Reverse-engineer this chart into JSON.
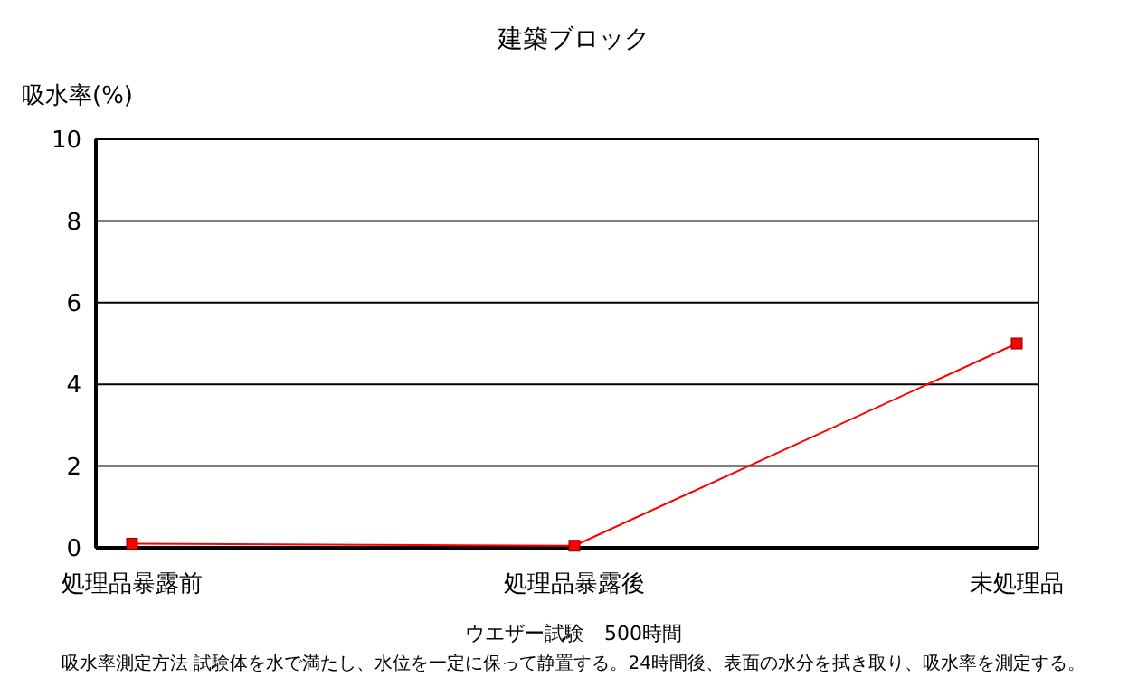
{
  "chart_data": {
    "type": "line",
    "title": "建築ブロック",
    "ylabel": "吸水率(%)",
    "xlabel": "ウエザー試験　500時間",
    "categories": [
      "処理品暴露前",
      "処理品暴露後",
      "未処理品"
    ],
    "series": [
      {
        "color": "#ff0000",
        "values": [
          0.1,
          0.05,
          5.0
        ]
      }
    ],
    "ylim": [
      0,
      10
    ],
    "yticks": [
      0,
      2,
      4,
      6,
      8,
      10
    ],
    "grid": "y",
    "marker": "square",
    "line_style": "solid",
    "annotations": [
      "吸水率測定方法 試験体を水で満たし、水位を一定に保って静置する。24時間後、表面の水分を拭き取り、吸水率を測定する。"
    ]
  }
}
